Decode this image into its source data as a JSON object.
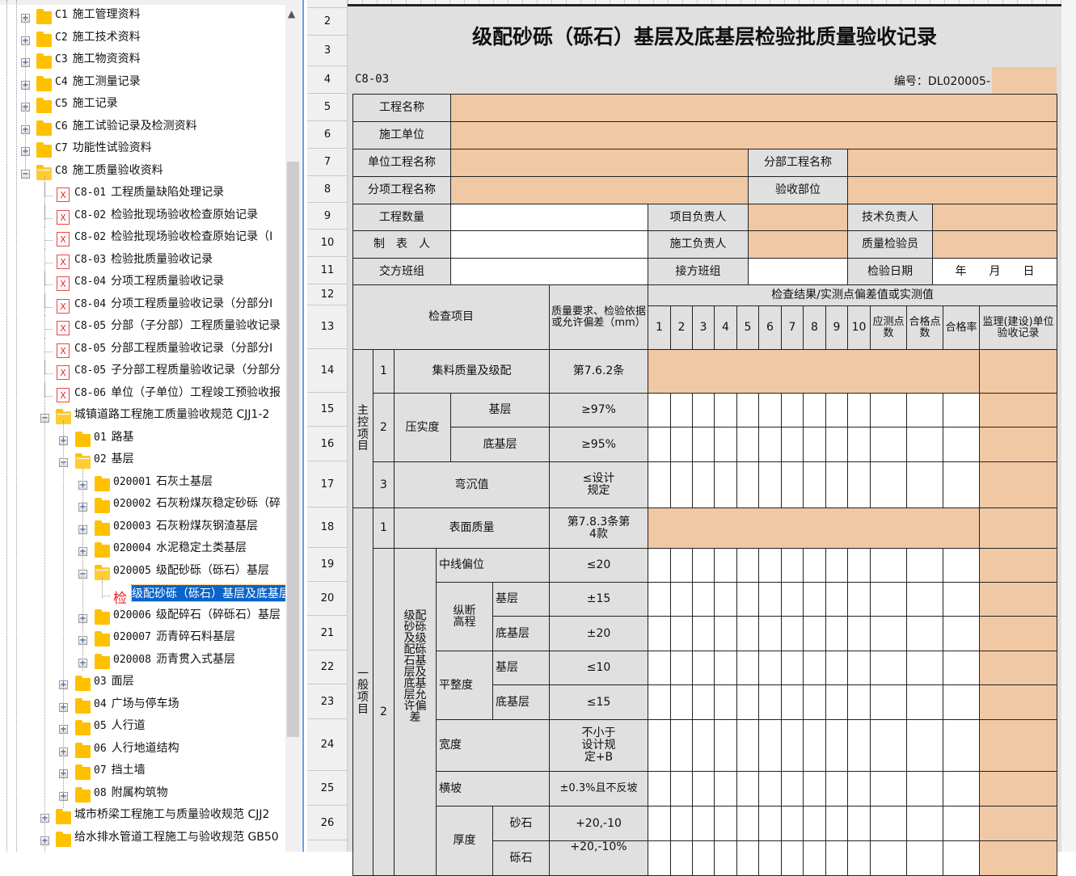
{
  "tree": {
    "items": [
      {
        "lv": 0,
        "exp": "plus",
        "icon": "folder",
        "code": "C1",
        "label": "施工管理资料"
      },
      {
        "lv": 0,
        "exp": "plus",
        "icon": "folder",
        "code": "C2",
        "label": "施工技术资料"
      },
      {
        "lv": 0,
        "exp": "plus",
        "icon": "folder",
        "code": "C3",
        "label": "施工物资资料"
      },
      {
        "lv": 0,
        "exp": "plus",
        "icon": "folder",
        "code": "C4",
        "label": "施工测量记录"
      },
      {
        "lv": 0,
        "exp": "plus",
        "icon": "folder",
        "code": "C5",
        "label": "施工记录"
      },
      {
        "lv": 0,
        "exp": "plus",
        "icon": "folder",
        "code": "C6",
        "label": "施工试验记录及检测资料"
      },
      {
        "lv": 0,
        "exp": "plus",
        "icon": "folder",
        "code": "C7",
        "label": "功能性试验资料"
      },
      {
        "lv": 0,
        "exp": "minus",
        "icon": "folder-open",
        "code": "C8",
        "label": "施工质量验收资料"
      },
      {
        "lv": 1,
        "icon": "file",
        "code": "C8-01",
        "label": "工程质量缺陷处理记录"
      },
      {
        "lv": 1,
        "icon": "file",
        "code": "C8-02",
        "label": "检验批现场验收检查原始记录"
      },
      {
        "lv": 1,
        "icon": "file",
        "code": "C8-02",
        "label": "检验批现场验收检查原始记录（I"
      },
      {
        "lv": 1,
        "icon": "file",
        "code": "C8-03",
        "label": "检验批质量验收记录"
      },
      {
        "lv": 1,
        "icon": "file",
        "code": "C8-04",
        "label": "分项工程质量验收记录"
      },
      {
        "lv": 1,
        "icon": "file",
        "code": "C8-04",
        "label": "分项工程质量验收记录（分部分I"
      },
      {
        "lv": 1,
        "icon": "file",
        "code": "C8-05",
        "label": "分部（子分部）工程质量验收记录"
      },
      {
        "lv": 1,
        "icon": "file",
        "code": "C8-05",
        "label": "分部工程质量验收记录（分部分I"
      },
      {
        "lv": 1,
        "icon": "file",
        "code": "C8-05",
        "label": "子分部工程质量验收记录（分部分"
      },
      {
        "lv": 1,
        "icon": "file",
        "code": "C8-06",
        "label": "单位（子单位）工程竣工预验收报"
      },
      {
        "lv": 1,
        "exp": "minus",
        "icon": "folder-open",
        "code": "",
        "label": "城镇道路工程施工质量验收规范 CJJ1-2"
      },
      {
        "lv": 2,
        "exp": "plus",
        "icon": "folder",
        "code": "01",
        "label": "路基"
      },
      {
        "lv": 2,
        "exp": "minus",
        "icon": "folder-open",
        "code": "02",
        "label": "基层"
      },
      {
        "lv": 3,
        "exp": "plus",
        "icon": "folder",
        "code": "020001",
        "label": "石灰土基层"
      },
      {
        "lv": 3,
        "exp": "plus",
        "icon": "folder",
        "code": "020002",
        "label": "石灰粉煤灰稳定砂砾（碎"
      },
      {
        "lv": 3,
        "exp": "plus",
        "icon": "folder",
        "code": "020003",
        "label": "石灰粉煤灰钢渣基层"
      },
      {
        "lv": 3,
        "exp": "plus",
        "icon": "folder",
        "code": "020004",
        "label": "水泥稳定土类基层"
      },
      {
        "lv": 3,
        "exp": "minus",
        "icon": "folder-open",
        "code": "020005",
        "label": "级配砂砾（砾石）基层"
      },
      {
        "lv": 4,
        "icon": "check-doc",
        "badge": "检",
        "code": "",
        "label": "级配砂砾（砾石）基层及底基层",
        "selected": true
      },
      {
        "lv": 3,
        "exp": "plus",
        "icon": "folder",
        "code": "020006",
        "label": "级配碎石（碎砾石）基层"
      },
      {
        "lv": 3,
        "exp": "plus",
        "icon": "folder",
        "code": "020007",
        "label": "沥青碎石料基层"
      },
      {
        "lv": 3,
        "exp": "plus",
        "icon": "folder",
        "code": "020008",
        "label": "沥青贯入式基层"
      },
      {
        "lv": 2,
        "exp": "plus",
        "icon": "folder",
        "code": "03",
        "label": "面层"
      },
      {
        "lv": 2,
        "exp": "plus",
        "icon": "folder",
        "code": "04",
        "label": "广场与停车场"
      },
      {
        "lv": 2,
        "exp": "plus",
        "icon": "folder",
        "code": "05",
        "label": "人行道"
      },
      {
        "lv": 2,
        "exp": "plus",
        "icon": "folder",
        "code": "06",
        "label": "人行地道结构"
      },
      {
        "lv": 2,
        "exp": "plus",
        "icon": "folder",
        "code": "07",
        "label": "挡土墙"
      },
      {
        "lv": 2,
        "exp": "plus",
        "icon": "folder",
        "code": "08",
        "label": "附属构筑物"
      },
      {
        "lv": 1,
        "exp": "plus",
        "icon": "folder",
        "code": "",
        "label": "城市桥梁工程施工与质量验收规范 CJJ2"
      },
      {
        "lv": 1,
        "exp": "plus",
        "icon": "folder",
        "code": "",
        "label": "给水排水管道工程施工与验收规范 GB50"
      }
    ]
  },
  "row_headers": [
    "2",
    "3",
    "4",
    "5",
    "6",
    "7",
    "8",
    "9",
    "10",
    "11",
    "12",
    "13",
    "14",
    "15",
    "16",
    "17",
    "18",
    "19",
    "20",
    "21",
    "22",
    "23",
    "24",
    "25",
    "26"
  ],
  "colors": {
    "input_fill": "#f0c8a4",
    "label_fill": "#e0e0e0",
    "selection": "#0a64c8"
  },
  "form": {
    "title": "级配砂砾（砾石）基层及底基层检验批质量验收记录",
    "code": "C8-03",
    "number_label": "编号：DL020005-",
    "project_name": "工程名称",
    "construction_unit": "施工单位",
    "unit_project": "单位工程名称",
    "division_project": "分部工程名称",
    "subitem_project": "分项工程名称",
    "acceptance_part": "验收部位",
    "quantity": "工程数量",
    "project_manager": "项目负责人",
    "tech_manager": "技术负责人",
    "preparer": "制　表　人",
    "construction_manager": "施工负责人",
    "quality_inspector": "质量检验员",
    "handover_team": "交方班组",
    "takeover_team": "接方班组",
    "inspection_date": "检验日期",
    "date_value": "年　　月　　日",
    "h_item": "检查项目",
    "h_req": "质量要求、检验依据或允许偏差（mm）",
    "h_result": "检查结果/实测点偏差值或实测值",
    "h_points": [
      "1",
      "2",
      "3",
      "4",
      "5",
      "6",
      "7",
      "8",
      "9",
      "10"
    ],
    "h_should": "应测点数",
    "h_pass_pts": "合格点数",
    "h_pass_rate": "合格率",
    "h_supervisor": "监理(建设)单位验收记录",
    "main_control": "主控项目",
    "general": "一般项目",
    "r14": {
      "no": "1",
      "name": "集料质量及级配",
      "req": "第7.6.2条"
    },
    "r15": {
      "no": "2",
      "name": "压实度",
      "sub": "基层",
      "req": "≥97%"
    },
    "r16": {
      "sub": "底基层",
      "req": "≥95%"
    },
    "r17": {
      "no": "3",
      "name": "弯沉值",
      "req": "≤设计规定"
    },
    "r18": {
      "no": "1",
      "name": "表面质量",
      "req": "第7.8.3条第4款"
    },
    "r19": {
      "no": "2",
      "group": "级配砂砾及级配砾石基层及底基层允许偏差",
      "name": "中线偏位",
      "req": "≤20"
    },
    "r20": {
      "name": "纵断高程",
      "sub": "基层",
      "req": "±15"
    },
    "r21": {
      "sub": "底基层",
      "req": "±20"
    },
    "r22": {
      "name": "平整度",
      "sub": "基层",
      "req": "≤10"
    },
    "r23": {
      "sub": "底基层",
      "req": "≤15"
    },
    "r24": {
      "name": "宽度",
      "req": "不小于设计规定+B"
    },
    "r25": {
      "name": "横坡",
      "req": "±0.3%且不反坡"
    },
    "r26": {
      "name": "厚度",
      "sub": "砂石",
      "req": "+20,-10"
    },
    "r27": {
      "sub": "砾石",
      "req": "+20,-10%"
    }
  }
}
